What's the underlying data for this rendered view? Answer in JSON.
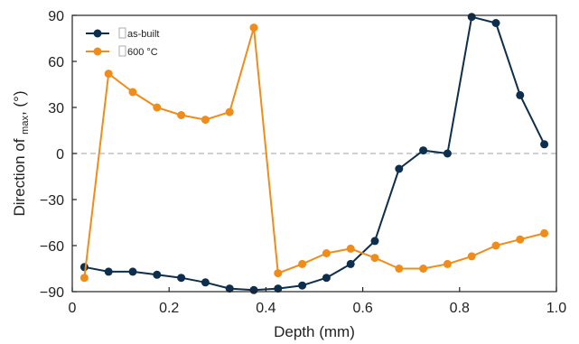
{
  "chart_data": {
    "type": "line",
    "xlabel": "Depth (mm)",
    "ylabel_parts": [
      "Direction of ",
      "max",
      ",   (°)"
    ],
    "xlim": [
      0,
      1.0
    ],
    "ylim": [
      -90,
      90
    ],
    "x_ticks": [
      0,
      0.2,
      0.4,
      0.6,
      0.8,
      1.0
    ],
    "x_tick_labels": [
      "0",
      "0.2",
      "0.4",
      "0.6",
      "0.8",
      "1.0"
    ],
    "y_ticks": [
      -90,
      -60,
      -30,
      0,
      30,
      60,
      90
    ],
    "y_tick_labels": [
      "−90",
      "−60",
      "−30",
      "0",
      "30",
      "60",
      "90"
    ],
    "zero_line": true,
    "legend_position": "top-left",
    "x": [
      0.025,
      0.075,
      0.125,
      0.175,
      0.225,
      0.275,
      0.325,
      0.375,
      0.425,
      0.475,
      0.525,
      0.575,
      0.625,
      0.675,
      0.725,
      0.775,
      0.825,
      0.875,
      0.925,
      0.975
    ],
    "series": [
      {
        "name": "as-built",
        "color": "#0d2f4d",
        "values": [
          -74,
          -77,
          -77,
          -79,
          -81,
          -84,
          -88,
          -89,
          -88,
          -86,
          -81,
          -72,
          -57,
          -10,
          2,
          0,
          89,
          85,
          38,
          6
        ]
      },
      {
        "name": "600 °C",
        "color": "#f08c1a",
        "values": [
          -81,
          52,
          40,
          30,
          25,
          22,
          27,
          82,
          -78,
          -72,
          -65,
          -62,
          -68,
          -75,
          -75,
          -72,
          -67,
          -60,
          -56,
          -52
        ]
      }
    ]
  }
}
